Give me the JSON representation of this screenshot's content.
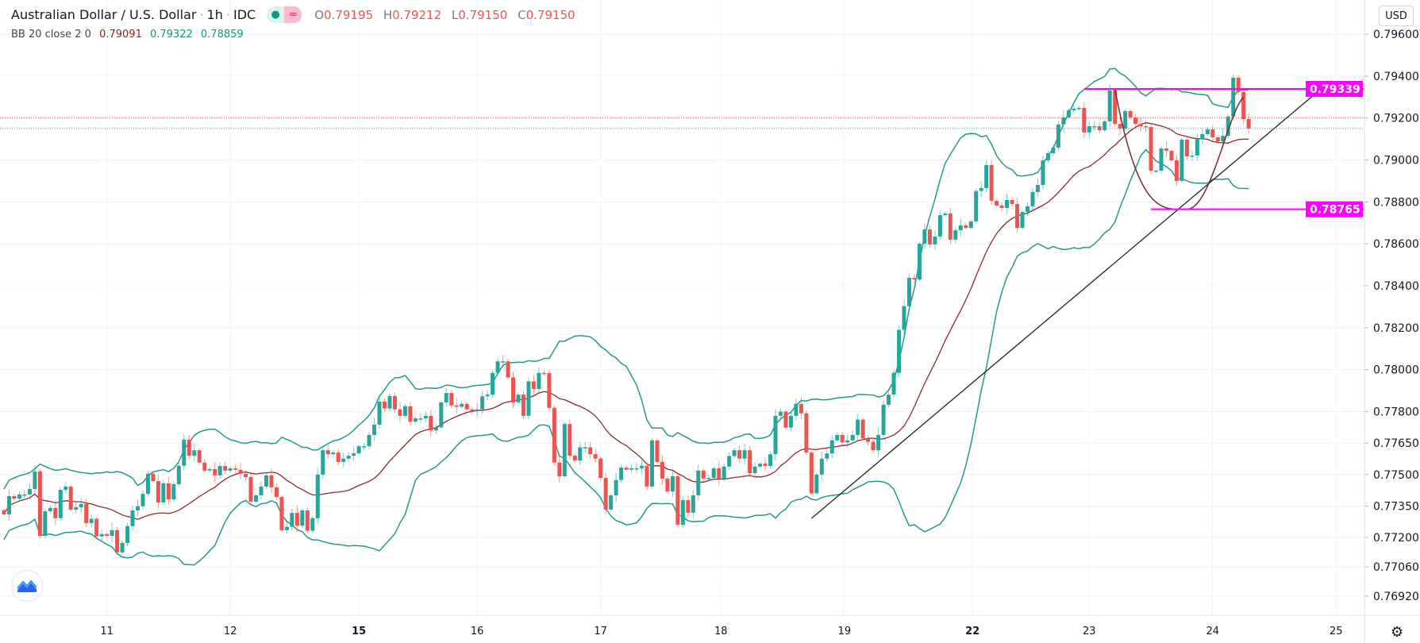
{
  "header": {
    "symbol": "Australian Dollar / U.S. Dollar",
    "interval": "1h",
    "exchange": "IDC",
    "separator": "·",
    "ohlc": {
      "o_label": "O",
      "o": "0.79195",
      "h_label": "H",
      "h": "0.79212",
      "l_label": "L",
      "l": "0.79150",
      "c_label": "C",
      "c": "0.79150"
    },
    "pill_icons": [
      "market-open-dot-icon",
      "approx-icon"
    ],
    "pill_glyphs": [
      "●",
      "≈"
    ]
  },
  "indicator": {
    "label": "BB 20 close 2 0",
    "basis": "0.79091",
    "upper": "0.79322",
    "lower": "0.78859"
  },
  "currency_button": "USD",
  "colors": {
    "up": "#26a69a",
    "down": "#ef5350",
    "bands": "#22998d",
    "basis": "#8b2b2b",
    "level": "#ff00ff",
    "trendline": "#222222",
    "last_price": "#2196f3",
    "prev_close": "#ef5350"
  },
  "chart_data": {
    "type": "candlestick",
    "interval": "1h",
    "y_scale": "price",
    "grid": true,
    "yticks": [
      "0.79600",
      "0.79400",
      "0.79200",
      "0.79000",
      "0.78800",
      "0.78600",
      "0.78400",
      "0.78200",
      "0.78000",
      "0.77800",
      "0.77650",
      "0.77500",
      "0.77350",
      "0.77200",
      "0.77060",
      "0.76920"
    ],
    "xticks": [
      "11",
      "12",
      "15",
      "16",
      "17",
      "18",
      "19",
      "22",
      "23",
      "24",
      "25"
    ],
    "bold_xticks": [
      "15",
      "22"
    ],
    "first_open": 0.7733,
    "closes": [
      0.7731,
      0.77397,
      0.77385,
      0.77405,
      0.77405,
      0.77431,
      0.77515,
      0.77208,
      0.77325,
      0.77341,
      0.77292,
      0.77427,
      0.77443,
      0.77333,
      0.77344,
      0.7736,
      0.77269,
      0.77289,
      0.77205,
      0.77216,
      0.77208,
      0.77235,
      0.77129,
      0.77174,
      0.77254,
      0.77329,
      0.77349,
      0.77408,
      0.77504,
      0.77469,
      0.77367,
      0.77458,
      0.77382,
      0.77454,
      0.77542,
      0.77667,
      0.7759,
      0.77616,
      0.77557,
      0.77519,
      0.77526,
      0.77496,
      0.77541,
      0.77519,
      0.7753,
      0.77523,
      0.77504,
      0.77488,
      0.77371,
      0.77401,
      0.77443,
      0.77496,
      0.77439,
      0.77393,
      0.77235,
      0.77251,
      0.77317,
      0.77256,
      0.77329,
      0.77232,
      0.77292,
      0.775,
      0.77616,
      0.77597,
      0.77605,
      0.7756,
      0.77576,
      0.7759,
      0.77601,
      0.77635,
      0.77635,
      0.77689,
      0.77738,
      0.77848,
      0.77815,
      0.77874,
      0.77811,
      0.7778,
      0.77826,
      0.77752,
      0.77768,
      0.77768,
      0.7778,
      0.7771,
      0.77725,
      0.77844,
      0.77889,
      0.7783,
      0.77823,
      0.77837,
      0.77811,
      0.77804,
      0.77811,
      0.77873,
      0.77881,
      0.77985,
      0.7804,
      0.7804,
      0.77963,
      0.77844,
      0.77881,
      0.7778,
      0.77944,
      0.77908,
      0.77985,
      0.77984,
      0.77818,
      0.77557,
      0.77492,
      0.77741,
      0.7759,
      0.77567,
      0.7763,
      0.7763,
      0.77597,
      0.77576,
      0.77484,
      0.77333,
      0.77401,
      0.77474,
      0.77533,
      0.77523,
      0.7753,
      0.7753,
      0.77542,
      0.77443,
      0.77663,
      0.7756,
      0.77481,
      0.77419,
      0.77492,
      0.7726,
      0.77378,
      0.77318,
      0.77401,
      0.77519,
      0.77481,
      0.77484,
      0.7753,
      0.77481,
      0.77538,
      0.77588,
      0.77616,
      0.77576,
      0.77616,
      0.77507,
      0.77538,
      0.77552,
      0.77541,
      0.77597,
      0.7778,
      0.778,
      0.77724,
      0.7778,
      0.77837,
      0.77792,
      0.77605,
      0.77411,
      0.775,
      0.77576,
      0.77601,
      0.77663,
      0.77689,
      0.77653,
      0.77663,
      0.77689,
      0.77762,
      0.77672,
      0.77656,
      0.77616,
      0.77689,
      0.77833,
      0.77881,
      0.77985,
      0.7819,
      0.78303,
      0.78438,
      0.7843,
      0.78601,
      0.78669,
      0.78597,
      0.78635,
      0.78737,
      0.78745,
      0.7862,
      0.78665,
      0.78688,
      0.78676,
      0.78707,
      0.78852,
      0.78866,
      0.78976,
      0.78805,
      0.78783,
      0.78771,
      0.78809,
      0.7879,
      0.78676,
      0.78752,
      0.78779,
      0.78847,
      0.78881,
      0.78998,
      0.79032,
      0.79059,
      0.79169,
      0.79203,
      0.79237,
      0.79245,
      0.79248,
      0.79131,
      0.79161,
      0.79161,
      0.79142,
      0.79184,
      0.79332,
      0.79172,
      0.7915,
      0.79233,
      0.79203,
      0.79172,
      0.79161,
      0.79157,
      0.78949,
      0.78949,
      0.79055,
      0.79044,
      0.78998,
      0.789,
      0.79097,
      0.79017,
      0.79021,
      0.79099,
      0.79123,
      0.79146,
      0.79108,
      0.79088,
      0.79115,
      0.79207,
      0.79392,
      0.79324,
      0.79195,
      0.7915
    ],
    "bollinger": {
      "length": 20,
      "source": "close",
      "stddev": 2
    },
    "last_price": 0.7915,
    "prev_close_line": 0.792,
    "levels": [
      {
        "price": 0.79339,
        "label": "0.79339",
        "from_candle": 210
      },
      {
        "price": 0.78765,
        "label": "0.78765",
        "from_candle": 223
      }
    ],
    "trendline": {
      "from": {
        "candle": 157,
        "price": 0.77291
      },
      "to": {
        "candle": 257,
        "price": 0.79358
      }
    },
    "arc": [
      {
        "candle": 216,
        "price": 0.79339
      },
      {
        "candle": 230,
        "price": 0.78765
      },
      {
        "candle": 241,
        "price": 0.793
      }
    ]
  }
}
